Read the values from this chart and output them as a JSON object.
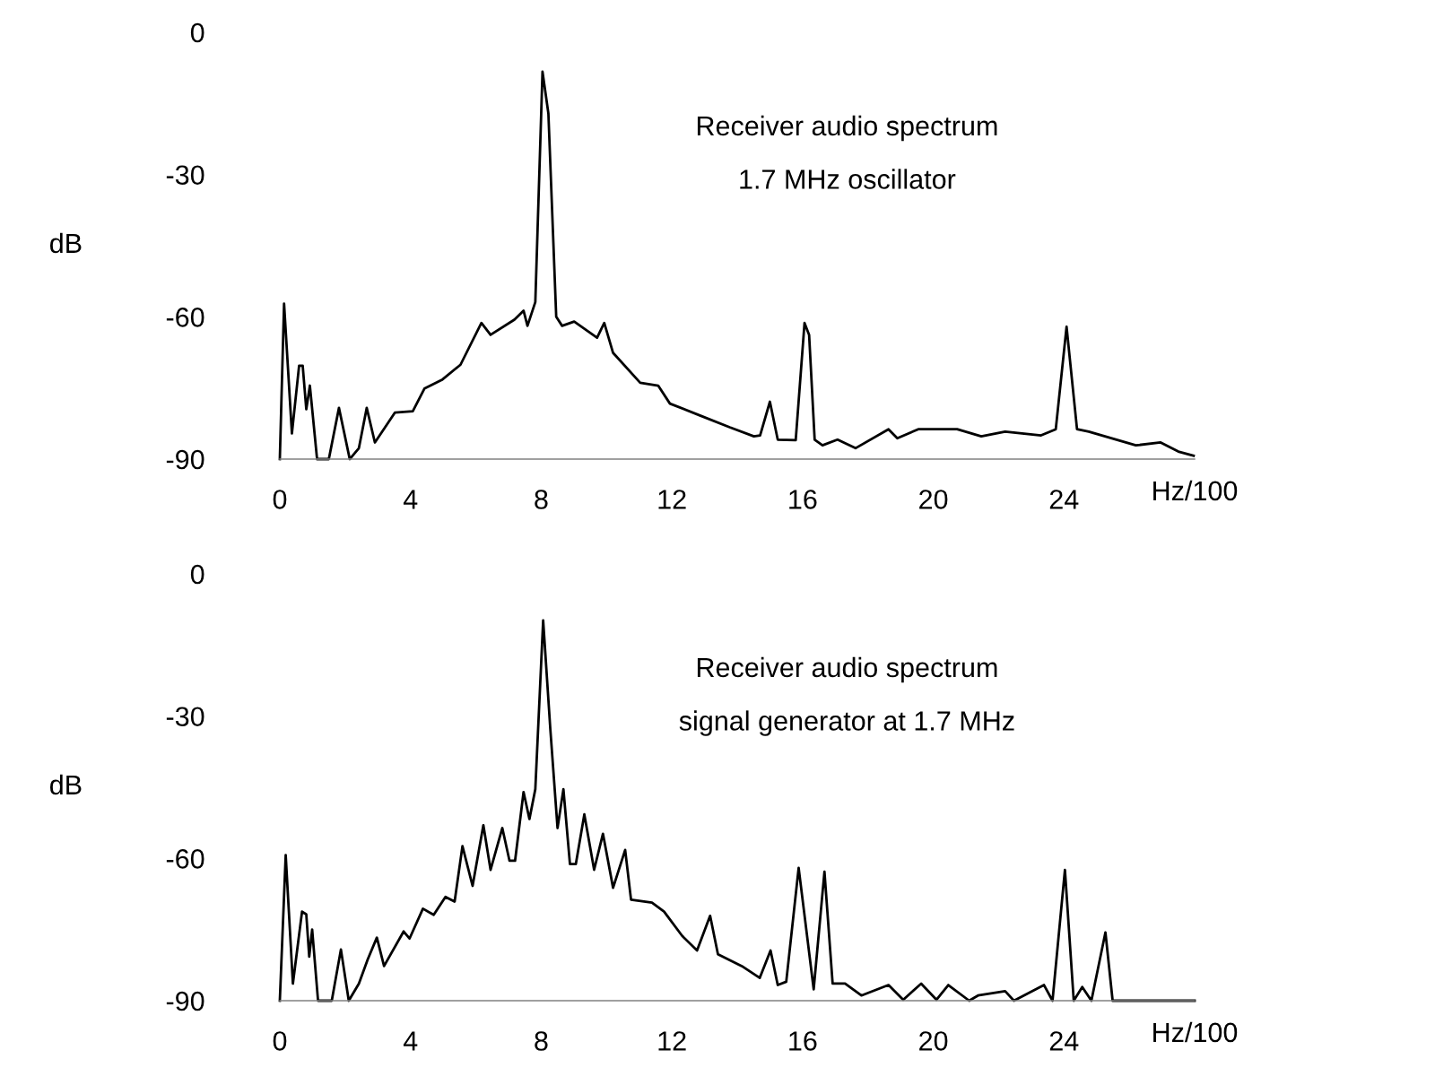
{
  "chart_data": [
    {
      "type": "line",
      "title": "Receiver audio spectrum",
      "subtitle": "1.7 MHz oscillator",
      "xlabel": "Hz/100",
      "ylabel": "dB",
      "series": [
        {
          "color": "#000000",
          "x": [
            0,
            0.13,
            0.37,
            0.59,
            0.7,
            0.81,
            0.92,
            1.14,
            1.5,
            1.81,
            2.14,
            2.42,
            2.66,
            2.91,
            3.52,
            4.07,
            4.43,
            4.98,
            5.53,
            6.17,
            6.45,
            7.18,
            7.46,
            7.58,
            7.82,
            8.04,
            8.22,
            8.46,
            8.64,
            9.01,
            9.71,
            9.93,
            10.2,
            11.03,
            11.58,
            11.94,
            12.86,
            13.77,
            14.51,
            14.7,
            15.0,
            15.24,
            15.79,
            16.06,
            16.2,
            16.37,
            16.61,
            17.07,
            17.62,
            18.63,
            18.9,
            19.54,
            20.73,
            21.47,
            22.2,
            23.3,
            23.75,
            24.08,
            24.4,
            24.76,
            26.2,
            26.96,
            27.5,
            27.97
          ],
          "values": [
            -90,
            -57.2,
            -84.6,
            -70.3,
            -70.3,
            -79.5,
            -74.5,
            -90,
            -90,
            -79.2,
            -90,
            -87.7,
            -79.2,
            -86.5,
            -80.2,
            -79.9,
            -75.1,
            -73.2,
            -70.1,
            -61.3,
            -63.8,
            -60.6,
            -58.7,
            -61.9,
            -56.9,
            -8.3,
            -17.1,
            -60,
            -61.9,
            -61,
            -64.4,
            -61.3,
            -67.6,
            -73.9,
            -74.5,
            -78.3,
            -80.8,
            -83.3,
            -85.2,
            -85,
            -77.9,
            -85.9,
            -86,
            -61.3,
            -63.8,
            -85.9,
            -87.1,
            -85.9,
            -87.7,
            -83.7,
            -85.6,
            -83.7,
            -83.7,
            -85.2,
            -84.2,
            -85,
            -83.7,
            -62.1,
            -83.7,
            -84.2,
            -87.1,
            -86.5,
            -88.4,
            -89.3
          ]
        }
      ],
      "xlim": [
        0,
        28
      ],
      "ylim": [
        -90,
        0
      ],
      "xticks": [
        0,
        4,
        8,
        12,
        16,
        20,
        24
      ],
      "yticks": [
        0,
        -30,
        -60,
        -90
      ]
    },
    {
      "type": "line",
      "title": "Receiver audio spectrum",
      "subtitle": "signal generator at 1.7 MHz",
      "xlabel": "Hz/100",
      "ylabel": "dB",
      "series": [
        {
          "color": "#000000",
          "x": [
            0,
            0.18,
            0.4,
            0.68,
            0.81,
            0.9,
            0.99,
            1.17,
            1.59,
            1.87,
            2.11,
            2.42,
            2.69,
            2.97,
            3.19,
            3.79,
            3.97,
            4.38,
            4.71,
            5.07,
            5.35,
            5.59,
            5.9,
            6.23,
            6.45,
            6.81,
            7.03,
            7.2,
            7.46,
            7.64,
            7.82,
            8.06,
            8.28,
            8.5,
            8.68,
            8.88,
            9.06,
            9.32,
            9.62,
            9.89,
            10.2,
            10.57,
            10.75,
            11.39,
            11.76,
            12.31,
            12.77,
            13.17,
            13.41,
            14.14,
            14.69,
            15.02,
            15.24,
            15.5,
            15.88,
            16.34,
            16.67,
            16.92,
            17.3,
            17.8,
            18.63,
            19.08,
            19.63,
            20.1,
            20.46,
            21.1,
            21.37,
            22.2,
            22.47,
            23.39,
            23.65,
            24.03,
            24.3,
            24.56,
            24.84,
            25.27,
            25.49,
            28.0
          ],
          "values": [
            -90,
            -59.3,
            -86.4,
            -71.2,
            -71.8,
            -80.7,
            -75,
            -90,
            -90,
            -79.2,
            -90,
            -86.4,
            -81.3,
            -76.7,
            -82.7,
            -75.4,
            -76.9,
            -70.6,
            -71.9,
            -68.1,
            -69.1,
            -57.4,
            -65.8,
            -53,
            -62.4,
            -53.6,
            -60.5,
            -60.5,
            -46,
            -51.7,
            -45.4,
            -9.8,
            -32.8,
            -53.6,
            -45.4,
            -61.2,
            -61.2,
            -50.7,
            -62.4,
            -54.8,
            -66.2,
            -58.2,
            -68.7,
            -69.3,
            -71.2,
            -76.3,
            -79.4,
            -72.1,
            -80.2,
            -82.7,
            -85.2,
            -79.4,
            -86.7,
            -86,
            -62,
            -87.6,
            -62.8,
            -86.4,
            -86.4,
            -88.9,
            -86.7,
            -89.8,
            -86.4,
            -89.8,
            -86.7,
            -90,
            -88.9,
            -88,
            -90,
            -86.7,
            -90,
            -62.4,
            -90,
            -87.1,
            -90,
            -75.6,
            -90,
            -90
          ]
        }
      ],
      "xlim": [
        0,
        28
      ],
      "ylim": [
        -90,
        0
      ],
      "xticks": [
        0,
        4,
        8,
        12,
        16,
        20,
        24
      ],
      "yticks": [
        0,
        -30,
        -60,
        -90
      ]
    }
  ]
}
